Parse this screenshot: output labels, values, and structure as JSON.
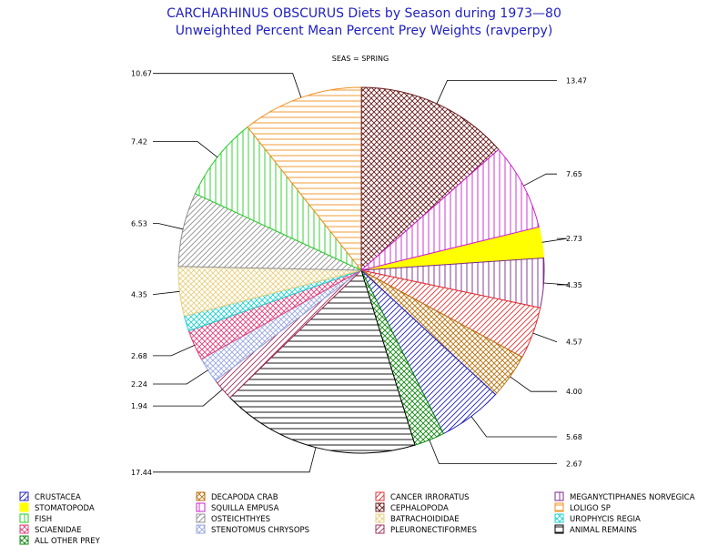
{
  "chart_data": {
    "type": "pie",
    "title": "CARCHARHINUS OBSCURUS Diets by Season during 1973—80",
    "subtitle": "Unweighted Percent Mean Percent Prey  Weights (ravperpy)",
    "panel_label": "SEAS = SPRING",
    "slices": [
      {
        "name": "STOMATOPODA",
        "value": 2.73,
        "label": "2.73",
        "color": "#ffff00",
        "pattern": "solid"
      },
      {
        "name": "MEGANYCTIPHANES NORVEGICA",
        "value": 4.35,
        "label": "4.35",
        "color": "#7a2a8a",
        "pattern": "vertical"
      },
      {
        "name": "CANCER IRRORATUS",
        "value": 4.57,
        "label": "4.57",
        "color": "#e53030",
        "pattern": "diag-forward"
      },
      {
        "name": "DECAPODA CRAB",
        "value": 4.0,
        "label": "4.00",
        "color": "#b8720e",
        "pattern": "crosshatch"
      },
      {
        "name": "CRUSTACEA",
        "value": 5.68,
        "label": "5.68",
        "color": "#2020c0",
        "pattern": "diag-forward"
      },
      {
        "name": "ALL OTHER PREY",
        "value": 2.67,
        "label": "2.67",
        "color": "#118811",
        "pattern": "crosshatch"
      },
      {
        "name": "ANIMAL REMAINS",
        "value": 17.44,
        "label": "17.44",
        "color": "#000000",
        "pattern": "horizontal"
      },
      {
        "name": "PLEURONECTIFORMES",
        "value": 1.94,
        "label": "1.94",
        "color": "#a0305a",
        "pattern": "diag-forward"
      },
      {
        "name": "STENOTOMUS CHRYSOPS",
        "value": 2.24,
        "label": "2.24",
        "color": "#9aa8e0",
        "pattern": "crosshatch"
      },
      {
        "name": "SCIAENIDAE",
        "value": 2.68,
        "label": "2.68",
        "color": "#e0407a",
        "pattern": "crosshatch"
      },
      {
        "name": "UROPHYCIS REGIA",
        "value": 1.35,
        "label": "",
        "color": "#20d0d0",
        "pattern": "crosshatch"
      },
      {
        "name": "BATRACHOIDIDAE",
        "value": 4.35,
        "label": "4.35",
        "color": "#e8d080",
        "pattern": "crosshatch"
      },
      {
        "name": "OSTEICHTHYES",
        "value": 6.53,
        "label": "6.53",
        "color": "#909090",
        "pattern": "diag-forward"
      },
      {
        "name": "FISH",
        "value": 7.42,
        "label": "7.42",
        "color": "#22cc22",
        "pattern": "vertical"
      },
      {
        "name": "LOLIGO SP",
        "value": 10.67,
        "label": "10.67",
        "color": "#f09020",
        "pattern": "horizontal"
      },
      {
        "name": "CEPHALOPODA",
        "value": 13.47,
        "label": "13.47",
        "color": "#6a1a1a",
        "pattern": "crosshatch"
      },
      {
        "name": "SQUILLA EMPUSA",
        "value": 7.65,
        "label": "7.65",
        "color": "#cc22cc",
        "pattern": "vertical"
      }
    ],
    "legend_order": [
      "CRUSTACEA",
      "DECAPODA CRAB",
      "CANCER IRRORATUS",
      "MEGANYCTIPHANES NORVEGICA",
      "STOMATOPODA",
      "SQUILLA EMPUSA",
      "CEPHALOPODA",
      "LOLIGO SP",
      "FISH",
      "OSTEICHTHYES",
      "BATRACHOIDIDAE",
      "UROPHYCIS REGIA",
      "SCIAENIDAE",
      "STENOTOMUS CHRYSOPS",
      "PLEURONECTIFORMES",
      "ANIMAL REMAINS",
      "ALL OTHER PREY"
    ],
    "legend_placement": "bottom"
  }
}
